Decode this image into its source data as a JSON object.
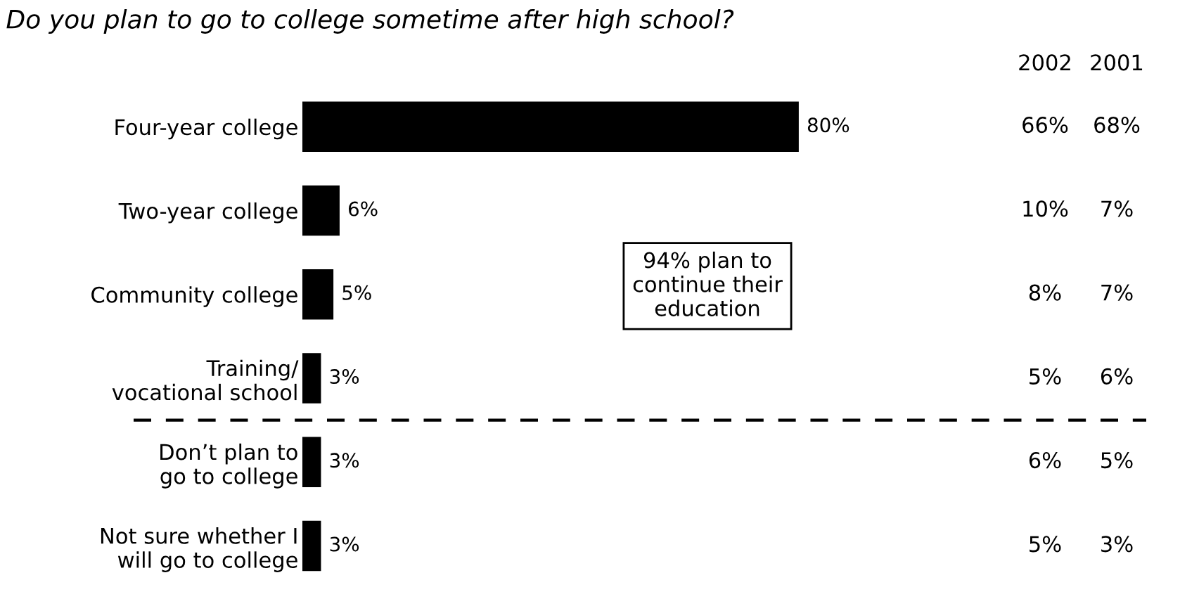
{
  "chart_data": {
    "type": "bar",
    "orientation": "horizontal",
    "title": "Do you plan to go to college sometime after high school?",
    "categories": [
      "Four-year college",
      "Two-year college",
      "Community college",
      "Training/\nvocational school",
      "Don’t plan to\ngo to college",
      "Not sure whether I\nwill go to college"
    ],
    "series": [
      {
        "color": "#000000",
        "values": [
          80,
          6,
          5,
          3,
          3,
          3
        ],
        "value_labels": [
          "80%",
          "6%",
          "5%",
          "3%",
          "3%",
          "3%"
        ]
      }
    ],
    "annotations": [
      "2002",
      "2001",
      "66%",
      "68%",
      "10%",
      "7%",
      "8%",
      "7%",
      "5%",
      "6%",
      "6%",
      "5%",
      "5%",
      "3%",
      "94% plan to\ncontinue their\neducation"
    ],
    "grid": false,
    "legend": false
  }
}
